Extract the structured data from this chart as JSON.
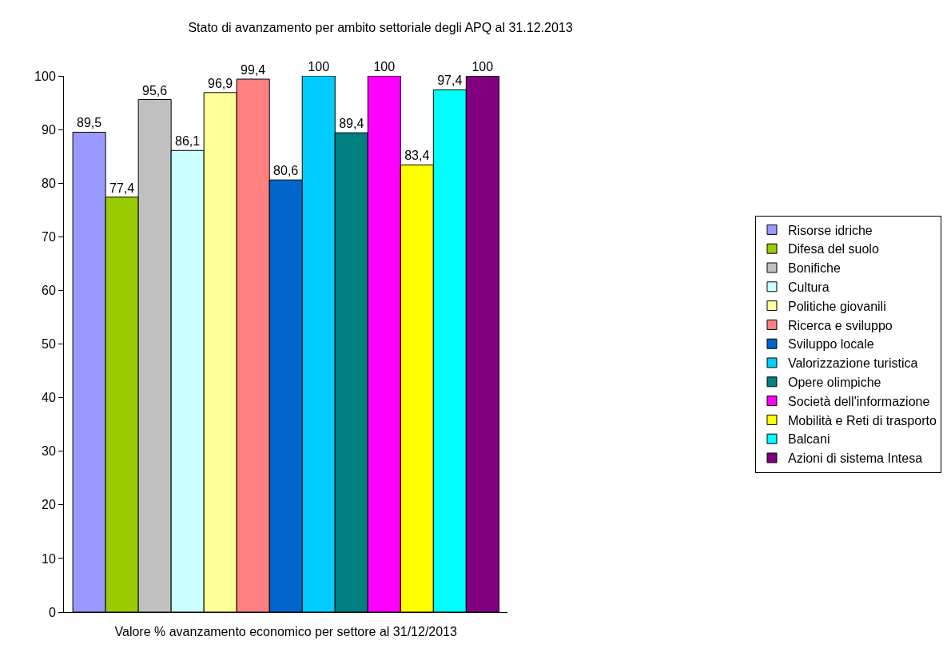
{
  "chart_data": {
    "type": "bar",
    "title": "Stato di avanzamento per ambito settoriale degli APQ al 31.12.2013",
    "xlabel": "Valore % avanzamento economico per settore al 31/12/2013",
    "categories": [
      null
    ],
    "series": [
      {
        "name": "Risorse idriche",
        "color": "#9999ff",
        "values": [
          89.5
        ],
        "value_labels": [
          "89,5"
        ]
      },
      {
        "name": "Difesa del suolo",
        "color": "#99cc00",
        "values": [
          77.4
        ],
        "value_labels": [
          "77,4"
        ]
      },
      {
        "name": "Bonifiche",
        "color": "#c0c0c0",
        "values": [
          95.6
        ],
        "value_labels": [
          "95,6"
        ]
      },
      {
        "name": "Cultura",
        "color": "#ccffff",
        "values": [
          86.1
        ],
        "value_labels": [
          "86,1"
        ]
      },
      {
        "name": "Politiche giovanili",
        "color": "#ffff99",
        "values": [
          96.9
        ],
        "value_labels": [
          "96,9"
        ]
      },
      {
        "name": "Ricerca e sviluppo",
        "color": "#ff8080",
        "values": [
          99.4
        ],
        "value_labels": [
          "99,4"
        ]
      },
      {
        "name": "Sviluppo locale",
        "color": "#0066cc",
        "values": [
          80.6
        ],
        "value_labels": [
          "80,6"
        ]
      },
      {
        "name": "Valorizzazione turistica",
        "color": "#00ccff",
        "values": [
          100
        ],
        "value_labels": [
          "100"
        ]
      },
      {
        "name": "Opere olimpiche",
        "color": "#008080",
        "values": [
          89.4
        ],
        "value_labels": [
          "89,4"
        ]
      },
      {
        "name": "Società dell'informazione",
        "color": "#ff00ff",
        "values": [
          100
        ],
        "value_labels": [
          "100"
        ]
      },
      {
        "name": "Mobilità e Reti di trasporto",
        "color": "#ffff00",
        "values": [
          83.4
        ],
        "value_labels": [
          "83,4"
        ]
      },
      {
        "name": "Balcani",
        "color": "#00ffff",
        "values": [
          97.4
        ],
        "value_labels": [
          "97,4"
        ]
      },
      {
        "name": "Azioni di sistema Intesa",
        "color": "#800080",
        "values": [
          100
        ],
        "value_labels": [
          "100"
        ]
      }
    ],
    "ylim": [
      0,
      100
    ],
    "yticks": [
      0,
      10,
      20,
      30,
      40,
      50,
      60,
      70,
      80,
      90,
      100
    ],
    "legend": "right"
  }
}
